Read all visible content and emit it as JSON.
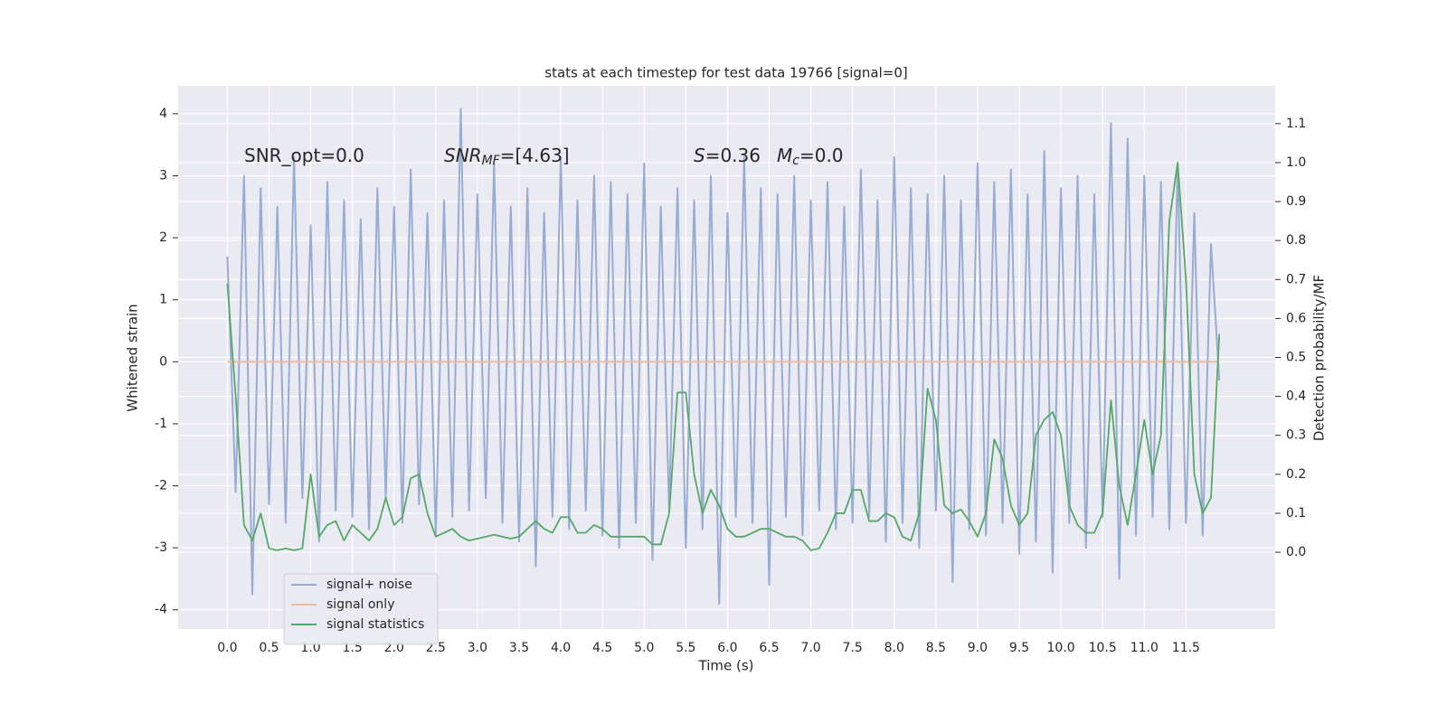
{
  "chart_data": {
    "type": "line",
    "title": "stats at each timestep for test data 19766 [signal=0]",
    "xlabel": "Time (s)",
    "ylabel": "Whitened strain",
    "y2label": "Detection probability/MF",
    "annotations": [
      {
        "text": "SNR_opt=0.0"
      },
      {
        "text": "SNR",
        "sub": "MF",
        "after": "=[4.63]",
        "italic": true
      },
      {
        "text": "S",
        "after": "=0.36",
        "italic": true
      },
      {
        "text": "M",
        "sub": "c",
        "after": "=0.0",
        "italic": true
      }
    ],
    "x": [
      0.0,
      0.1,
      0.2,
      0.3,
      0.4,
      0.5,
      0.6,
      0.7,
      0.8,
      0.9,
      1.0,
      1.1,
      1.2,
      1.3,
      1.4,
      1.5,
      1.6,
      1.7,
      1.8,
      1.9,
      2.0,
      2.1,
      2.2,
      2.3,
      2.4,
      2.5,
      2.6,
      2.7,
      2.8,
      2.9,
      3.0,
      3.1,
      3.2,
      3.3,
      3.4,
      3.5,
      3.6,
      3.7,
      3.8,
      3.9,
      4.0,
      4.1,
      4.2,
      4.3,
      4.4,
      4.5,
      4.6,
      4.7,
      4.8,
      4.9,
      5.0,
      5.1,
      5.2,
      5.3,
      5.4,
      5.5,
      5.6,
      5.7,
      5.8,
      5.9,
      6.0,
      6.1,
      6.2,
      6.3,
      6.4,
      6.5,
      6.6,
      6.7,
      6.8,
      6.9,
      7.0,
      7.1,
      7.2,
      7.3,
      7.4,
      7.5,
      7.6,
      7.7,
      7.8,
      7.9,
      8.0,
      8.1,
      8.2,
      8.3,
      8.4,
      8.5,
      8.6,
      8.7,
      8.8,
      8.9,
      9.0,
      9.1,
      9.2,
      9.3,
      9.4,
      9.5,
      9.6,
      9.7,
      9.8,
      9.9,
      10.0,
      10.1,
      10.2,
      10.3,
      10.4,
      10.5,
      10.6,
      10.7,
      10.8,
      10.9,
      11.0,
      11.1,
      11.2,
      11.3,
      11.4,
      11.5,
      11.6,
      11.7,
      11.8,
      11.9
    ],
    "series": [
      {
        "name": "signal+ noise",
        "color": "#98acd3",
        "values": [
          1.7,
          -2.1,
          3.0,
          -3.75,
          2.8,
          -2.3,
          2.5,
          -2.6,
          3.3,
          -2.2,
          2.2,
          -2.9,
          2.9,
          -2.4,
          2.6,
          -2.5,
          2.3,
          -2.7,
          2.8,
          -2.2,
          2.5,
          -2.6,
          3.1,
          -2.3,
          2.4,
          -2.8,
          2.6,
          -2.5,
          4.08,
          -2.4,
          2.7,
          -2.2,
          3.2,
          -2.6,
          2.5,
          -2.9,
          2.8,
          -3.3,
          2.4,
          -2.5,
          3.3,
          -2.7,
          2.6,
          -2.4,
          3.0,
          -2.8,
          2.9,
          -3.0,
          2.7,
          -2.6,
          3.2,
          -3.2,
          2.5,
          -2.4,
          2.8,
          -3.0,
          2.6,
          -2.7,
          3.0,
          -3.9,
          2.4,
          -2.5,
          3.3,
          -2.6,
          2.8,
          -3.6,
          2.7,
          -2.5,
          3.0,
          -2.8,
          2.6,
          -2.4,
          2.9,
          -2.7,
          2.5,
          -2.6,
          3.1,
          -2.5,
          2.6,
          -2.9,
          3.3,
          -2.6,
          2.8,
          -3.0,
          2.7,
          -2.4,
          3.0,
          -3.55,
          2.6,
          -2.7,
          3.2,
          -2.8,
          2.9,
          -2.6,
          3.1,
          -3.1,
          2.7,
          -2.9,
          3.4,
          -3.4,
          2.8,
          -2.6,
          3.0,
          -3.0,
          2.7,
          -2.5,
          3.85,
          -3.5,
          3.6,
          -2.8,
          3.0,
          -2.5,
          2.9,
          -2.7,
          3.2,
          -2.6,
          2.4,
          -2.8,
          1.9,
          -0.3
        ]
      },
      {
        "name": "signal only",
        "color": "#eeb9a0",
        "values": [
          0,
          0,
          0,
          0,
          0,
          0,
          0,
          0,
          0,
          0,
          0,
          0,
          0,
          0,
          0,
          0,
          0,
          0,
          0,
          0,
          0,
          0,
          0,
          0,
          0,
          0,
          0,
          0,
          0,
          0,
          0,
          0,
          0,
          0,
          0,
          0,
          0,
          0,
          0,
          0,
          0,
          0,
          0,
          0,
          0,
          0,
          0,
          0,
          0,
          0,
          0,
          0,
          0,
          0,
          0,
          0,
          0,
          0,
          0,
          0,
          0,
          0,
          0,
          0,
          0,
          0,
          0,
          0,
          0,
          0,
          0,
          0,
          0,
          0,
          0,
          0,
          0,
          0,
          0,
          0,
          0,
          0,
          0,
          0,
          0,
          0,
          0,
          0,
          0,
          0,
          0,
          0,
          0,
          0,
          0,
          0,
          0,
          0,
          0,
          0,
          0,
          0,
          0,
          0,
          0,
          0,
          0,
          0,
          0,
          0,
          0,
          0,
          0,
          0,
          0,
          0,
          0,
          0,
          0,
          0
        ]
      },
      {
        "name": "signal statistics",
        "color": "#55a868",
        "axis": "y2",
        "values": [
          0.69,
          0.4,
          0.07,
          0.03,
          0.1,
          0.01,
          0.005,
          0.01,
          0.005,
          0.01,
          0.2,
          0.04,
          0.07,
          0.08,
          0.03,
          0.07,
          0.05,
          0.03,
          0.06,
          0.14,
          0.07,
          0.09,
          0.19,
          0.2,
          0.1,
          0.04,
          0.05,
          0.06,
          0.04,
          0.03,
          0.035,
          0.04,
          0.045,
          0.04,
          0.035,
          0.04,
          0.06,
          0.08,
          0.06,
          0.05,
          0.09,
          0.09,
          0.05,
          0.05,
          0.07,
          0.06,
          0.04,
          0.04,
          0.04,
          0.04,
          0.04,
          0.02,
          0.02,
          0.1,
          0.41,
          0.41,
          0.2,
          0.1,
          0.16,
          0.12,
          0.06,
          0.04,
          0.04,
          0.05,
          0.06,
          0.06,
          0.05,
          0.04,
          0.04,
          0.03,
          0.005,
          0.01,
          0.05,
          0.1,
          0.1,
          0.16,
          0.16,
          0.08,
          0.08,
          0.1,
          0.09,
          0.04,
          0.03,
          0.1,
          0.42,
          0.34,
          0.12,
          0.1,
          0.11,
          0.08,
          0.04,
          0.1,
          0.29,
          0.24,
          0.12,
          0.07,
          0.1,
          0.3,
          0.34,
          0.36,
          0.3,
          0.12,
          0.07,
          0.05,
          0.05,
          0.1,
          0.39,
          0.17,
          0.07,
          0.2,
          0.34,
          0.2,
          0.3,
          0.85,
          1.0,
          0.7,
          0.2,
          0.1,
          0.14,
          0.56
        ]
      }
    ],
    "xlim": [
      -0.59,
      12.57
    ],
    "ylim": [
      -4.31,
      4.45
    ],
    "y2lim": [
      -0.197,
      1.197
    ],
    "xticks": [
      {
        "value": 0,
        "label": "0.0"
      },
      0.5,
      {
        "value": 1,
        "label": "1.0"
      },
      1.5,
      {
        "value": 2,
        "label": "2.0"
      },
      2.5,
      {
        "value": 3,
        "label": "3.0"
      },
      3.5,
      {
        "value": 4,
        "label": "4.0"
      },
      4.5,
      {
        "value": 5,
        "label": "5.0"
      },
      5.5,
      {
        "value": 6,
        "label": "6.0"
      },
      6.5,
      {
        "value": 7,
        "label": "7.0"
      },
      7.5,
      {
        "value": 8,
        "label": "8.0"
      },
      8.5,
      {
        "value": 9,
        "label": "9.0"
      },
      9.5,
      {
        "value": 10,
        "label": "10.0"
      },
      10.5,
      {
        "value": 11,
        "label": "11.0"
      },
      11.5
    ],
    "yticks": [
      -4,
      -3,
      -2,
      -1,
      0,
      1,
      2,
      3,
      4
    ],
    "y2ticks": [
      {
        "value": 0,
        "label": "0.0"
      },
      0.1,
      0.2,
      0.3,
      0.4,
      0.5,
      0.6,
      0.7,
      0.8,
      0.9,
      {
        "value": 1,
        "label": "1.0"
      },
      1.1
    ],
    "grid": true,
    "legend": "lower left"
  }
}
